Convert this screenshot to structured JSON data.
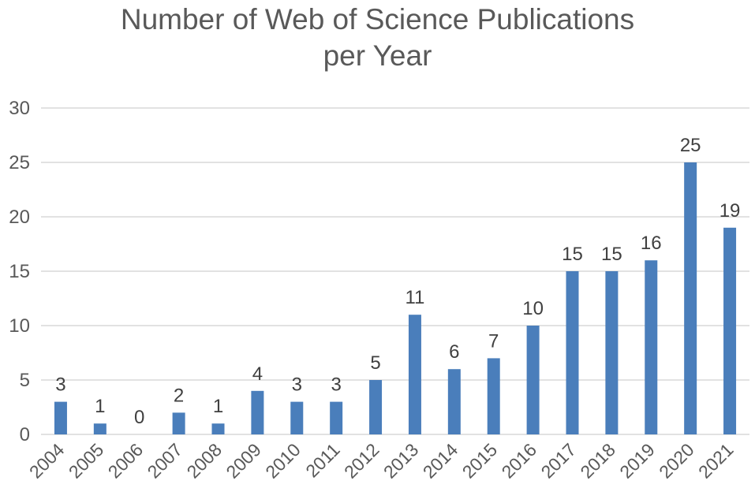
{
  "chart_data": {
    "type": "bar",
    "title_lines": [
      "Number of Web of Science Publications",
      "per Year"
    ],
    "categories": [
      "2004",
      "2005",
      "2006",
      "2007",
      "2008",
      "2009",
      "2010",
      "2011",
      "2012",
      "2013",
      "2014",
      "2015",
      "2016",
      "2017",
      "2018",
      "2019",
      "2020",
      "2021"
    ],
    "values": [
      3,
      1,
      0,
      2,
      1,
      4,
      3,
      3,
      5,
      11,
      6,
      7,
      10,
      15,
      15,
      16,
      25,
      19
    ],
    "xlabel": "",
    "ylabel": "",
    "ylim": [
      0,
      30
    ],
    "yticks": [
      0,
      5,
      10,
      15,
      20,
      25,
      30
    ],
    "grid": true,
    "data_labels": true,
    "bar_color": "#4a7ebb"
  }
}
